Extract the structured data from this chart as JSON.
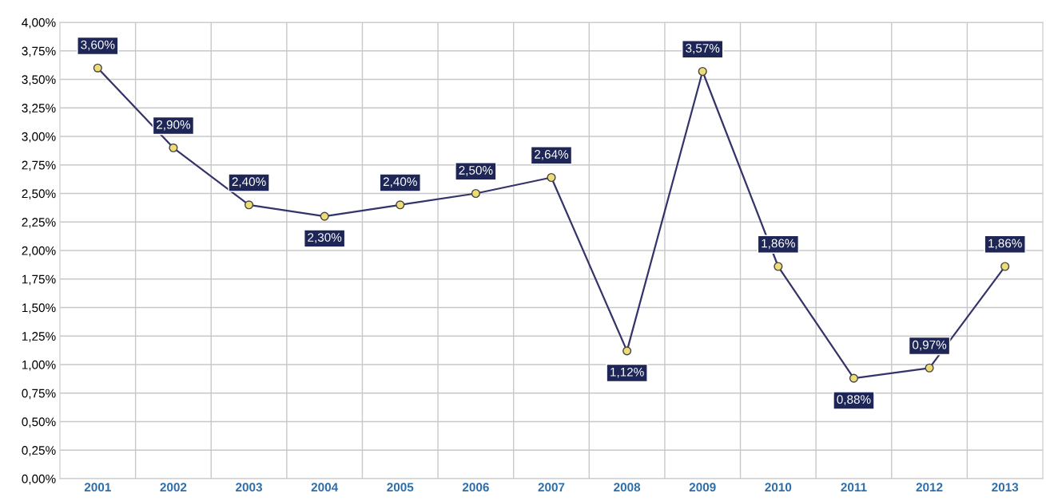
{
  "chart_data": {
    "type": "line",
    "categories": [
      "2001",
      "2002",
      "2003",
      "2004",
      "2005",
      "2006",
      "2007",
      "2008",
      "2009",
      "2010",
      "2011",
      "2012",
      "2013"
    ],
    "series": [
      {
        "color": "#34346a",
        "values": [
          3.6,
          2.9,
          2.4,
          2.3,
          2.4,
          2.5,
          2.64,
          1.12,
          3.57,
          1.86,
          0.88,
          0.97,
          1.86
        ],
        "value_labels": [
          "3,60%",
          "2,90%",
          "2,40%",
          "2,30%",
          "2,40%",
          "2,50%",
          "2,64%",
          "1,12%",
          "3,57%",
          "1,86%",
          "0,88%",
          "0,97%",
          "1,86%"
        ]
      }
    ],
    "ylim": [
      0,
      4
    ],
    "yticks": [
      {
        "value": 0,
        "label": "0,00%"
      },
      {
        "value": 0.25,
        "label": "0,25%"
      },
      {
        "value": 0.5,
        "label": "0,50%"
      },
      {
        "value": 0.75,
        "label": "0,75%"
      },
      {
        "value": 1,
        "label": "1,00%"
      },
      {
        "value": 1.25,
        "label": "1,25%"
      },
      {
        "value": 1.5,
        "label": "1,50%"
      },
      {
        "value": 1.75,
        "label": "1,75%"
      },
      {
        "value": 2,
        "label": "2,00%"
      },
      {
        "value": 2.25,
        "label": "2,25%"
      },
      {
        "value": 2.5,
        "label": "2,50%"
      },
      {
        "value": 2.75,
        "label": "2,75%"
      },
      {
        "value": 3,
        "label": "3,00%"
      },
      {
        "value": 3.25,
        "label": "3,25%"
      },
      {
        "value": 3.5,
        "label": "3,50%"
      },
      {
        "value": 3.75,
        "label": "3,75%"
      },
      {
        "value": 4,
        "label": "4,00%"
      }
    ],
    "grid": true,
    "marker": "circle",
    "line_style": "solid"
  }
}
